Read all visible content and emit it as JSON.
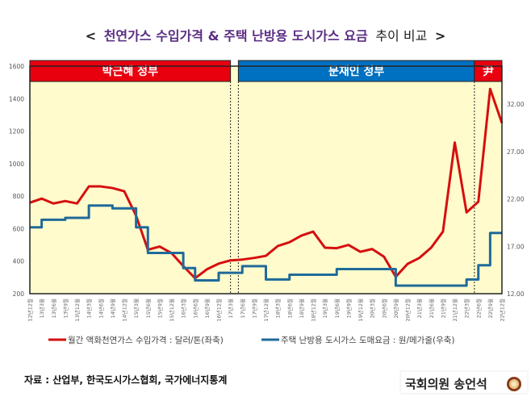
{
  "title": {
    "open": "<",
    "highlight": "천연가스 수입가격 & 주택 난방용 도시가스 요금",
    "rest": "추이 비교",
    "close": ">",
    "highlight_color": "#5a2d82"
  },
  "chart_data": {
    "type": "line",
    "x": [
      "12년12월",
      "13년3월",
      "13년6월",
      "13년9월",
      "13년12월",
      "14년3월",
      "14년6월",
      "14년9월",
      "14년12월",
      "15년3월",
      "15년6월",
      "15년9월",
      "15년12월",
      "16년3월",
      "16년6월",
      "16년9월",
      "16년12월",
      "17년3월",
      "17년6월",
      "17년9월",
      "17년12월",
      "18년3월",
      "18년6월",
      "18년9월",
      "18년12월",
      "19년3월",
      "19년6월",
      "19년9월",
      "19년12월",
      "20년3월",
      "20년6월",
      "20년9월",
      "20년12월",
      "21년3월",
      "21년6월",
      "21년9월",
      "21년12월",
      "22년3월",
      "22년6월",
      "22년9월",
      "22년12월"
    ],
    "left_axis": {
      "ylim": [
        200,
        1600
      ],
      "ticks": [
        "200",
        "400",
        "600",
        "800",
        "1000",
        "1200",
        "1400",
        "1600"
      ]
    },
    "right_axis": {
      "ylim": [
        12,
        36
      ],
      "ticks": [
        "12.00",
        "17.00",
        "22.00",
        "27.00",
        "32.00"
      ]
    },
    "series": [
      {
        "name": "월간 액화천연가스 수입가격 : 달러/톤(좌축)",
        "axis": "left",
        "color": "#d50f0f",
        "values": [
          760,
          785,
          755,
          770,
          755,
          860,
          860,
          850,
          830,
          680,
          470,
          490,
          450,
          370,
          295,
          350,
          385,
          405,
          410,
          420,
          433,
          493,
          517,
          557,
          582,
          483,
          480,
          500,
          458,
          475,
          428,
          304,
          383,
          420,
          483,
          582,
          1130,
          700,
          766,
          1460,
          1250
        ]
      },
      {
        "name": "주택 난방용 도시가스 도매요금 : 원/메가줄(우축)",
        "axis": "right",
        "color": "#1f6a9a",
        "values": [
          19.0,
          19.8,
          19.8,
          20.0,
          20.0,
          21.3,
          21.3,
          21.0,
          21.0,
          19.0,
          16.3,
          16.3,
          16.3,
          14.7,
          13.4,
          13.4,
          14.2,
          14.2,
          14.9,
          14.9,
          13.5,
          13.5,
          14.0,
          14.0,
          14.0,
          14.0,
          14.6,
          14.6,
          14.6,
          14.6,
          14.6,
          12.85,
          12.85,
          12.85,
          12.85,
          12.85,
          12.85,
          13.5,
          15.0,
          18.4,
          18.4
        ]
      }
    ],
    "periods": [
      {
        "label": "박근혜 정부",
        "start": "12년12월",
        "end": "17년3월",
        "color": "#e8000f"
      },
      {
        "label": "문재인 정부",
        "start": "17년5월",
        "end": "22년5월",
        "color": "#0070c0"
      },
      {
        "label": "尹",
        "start": "22년5월",
        "end": "22년12월",
        "color": "#e8000f"
      }
    ],
    "plot_background": "#fffbcc",
    "grid": false,
    "legend_position": "bottom"
  },
  "footer": {
    "source": "자료 : 산업부, 한국도시가스협회, 국가에너지통계",
    "signature": "국회의원 송언석",
    "seal_icon": "national-assembly-emblem"
  }
}
